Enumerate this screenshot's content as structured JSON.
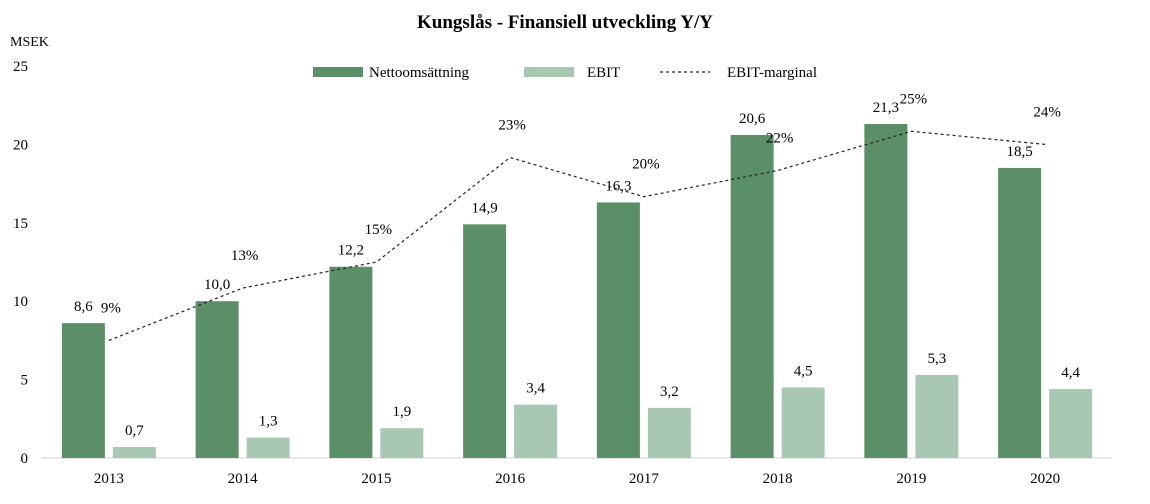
{
  "chart_data": {
    "type": "bar",
    "title": "Kungslås - Finansiell utveckling Y/Y",
    "y_unit_label": "MSEK",
    "categories": [
      "2013",
      "2014",
      "2015",
      "2016",
      "2017",
      "2018",
      "2019",
      "2020"
    ],
    "ylim": [
      0,
      25
    ],
    "y_ticks": [
      "0",
      "5",
      "10",
      "15",
      "20",
      "25"
    ],
    "series": [
      {
        "name": "Nettoomsättning",
        "kind": "bar",
        "color": "#5a8f68",
        "values": [
          8.6,
          10.0,
          12.2,
          14.9,
          16.3,
          20.6,
          21.3,
          18.5
        ],
        "labels": [
          "8,6",
          "10,0",
          "12,2",
          "14,9",
          "16,3",
          "20,6",
          "21,3",
          "18,5"
        ]
      },
      {
        "name": "EBIT",
        "kind": "bar",
        "color": "#a9c8b4",
        "values": [
          0.7,
          1.3,
          1.9,
          3.4,
          3.2,
          4.5,
          5.3,
          4.4
        ],
        "labels": [
          "0,7",
          "1,3",
          "1,9",
          "3,4",
          "3,2",
          "4,5",
          "5,3",
          "4,4"
        ]
      },
      {
        "name": "EBIT-marginal",
        "kind": "line",
        "style": "dashed",
        "color": "#222222",
        "values": [
          0.09,
          0.13,
          0.15,
          0.23,
          0.2,
          0.22,
          0.25,
          0.24
        ],
        "labels": [
          "9%",
          "13%",
          "15%",
          "23%",
          "20%",
          "22%",
          "25%",
          "24%"
        ]
      }
    ],
    "legend_position": "top-center",
    "grid": false
  }
}
